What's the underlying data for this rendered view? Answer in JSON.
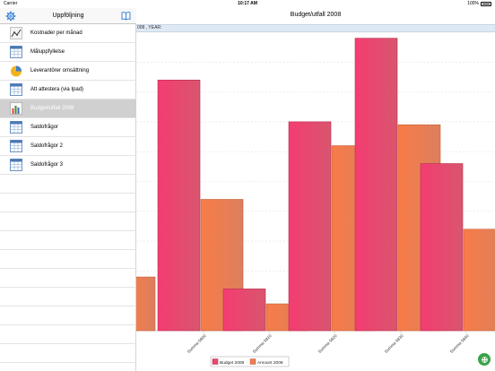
{
  "status": {
    "carrier": "Carrier",
    "time": "10:17 AM",
    "battery": "100%"
  },
  "sidebar": {
    "title": "Uppföljning",
    "items": [
      {
        "label": "Kostnader per månad",
        "icon": "line-chart-icon",
        "selected": false
      },
      {
        "label": "Måluppfyllelse",
        "icon": "table-icon",
        "selected": false
      },
      {
        "label": "Leverantörer omsättning",
        "icon": "pie-chart-icon",
        "selected": false
      },
      {
        "label": "Att attestera (via Ipad)",
        "icon": "table-icon",
        "selected": false
      },
      {
        "label": "Budget/utfall 2008",
        "icon": "bar-chart-icon",
        "selected": true
      },
      {
        "label": "Saldofrågor",
        "icon": "table-icon",
        "selected": false
      },
      {
        "label": "Saldofrågor 2",
        "icon": "table-icon",
        "selected": false
      },
      {
        "label": "Saldofrågor 3",
        "icon": "table-icon",
        "selected": false
      }
    ]
  },
  "main": {
    "title": "Budget/utfall 2008",
    "filter_text": "008 , YEAR:"
  },
  "colors": {
    "budget": "#f0406f",
    "amount": "#f4804c",
    "fab": "#3aa34a"
  },
  "chart_data": {
    "type": "bar",
    "categories": [
      "Summa 5800",
      "Summa 5810",
      "Summa 5820",
      "Summa 5830",
      "Summa 5840"
    ],
    "series": [
      {
        "name": "Budget 2008",
        "values": [
          84,
          14,
          70,
          98,
          56
        ]
      },
      {
        "name": "Amount 2008",
        "values": [
          44,
          9,
          62,
          69,
          34
        ]
      }
    ],
    "partial_left_bar_value": 18,
    "ylim": [
      0,
      100
    ],
    "grid": true,
    "legend": "bottom"
  }
}
